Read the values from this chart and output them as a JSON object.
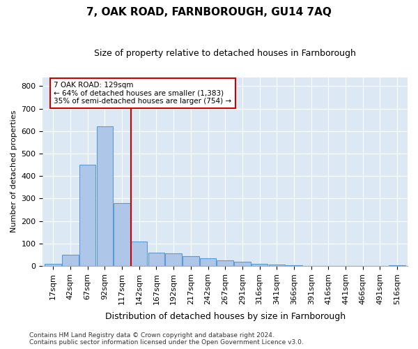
{
  "title1": "7, OAK ROAD, FARNBOROUGH, GU14 7AQ",
  "title2": "Size of property relative to detached houses in Farnborough",
  "xlabel": "Distribution of detached houses by size in Farnborough",
  "ylabel": "Number of detached properties",
  "footnote": "Contains HM Land Registry data © Crown copyright and database right 2024.\nContains public sector information licensed under the Open Government Licence v3.0.",
  "bin_labels": [
    "17sqm",
    "42sqm",
    "67sqm",
    "92sqm",
    "117sqm",
    "142sqm",
    "167sqm",
    "192sqm",
    "217sqm",
    "242sqm",
    "267sqm",
    "291sqm",
    "316sqm",
    "341sqm",
    "366sqm",
    "391sqm",
    "416sqm",
    "441sqm",
    "466sqm",
    "491sqm",
    "516sqm"
  ],
  "bar_values": [
    10,
    50,
    450,
    620,
    280,
    110,
    60,
    55,
    45,
    35,
    25,
    18,
    8,
    5,
    2,
    1,
    1,
    0,
    0,
    0,
    2
  ],
  "bar_color": "#aec6e8",
  "bar_edge_color": "#5b9bd5",
  "bg_color": "#dce9f5",
  "grid_color": "#ffffff",
  "property_size_idx": 4,
  "annotation_text": "7 OAK ROAD: 129sqm\n← 64% of detached houses are smaller (1,383)\n35% of semi-detached houses are larger (754) →",
  "annotation_box_color": "#ffffff",
  "annotation_box_edge_color": "#cc0000",
  "red_line_color": "#cc0000",
  "ylim": [
    0,
    840
  ],
  "yticks": [
    0,
    100,
    200,
    300,
    400,
    500,
    600,
    700,
    800
  ],
  "fig_bg_color": "#ffffff",
  "title1_fontsize": 11,
  "title2_fontsize": 9,
  "ylabel_fontsize": 8,
  "xlabel_fontsize": 9,
  "footnote_fontsize": 6.5,
  "tick_fontsize": 8
}
